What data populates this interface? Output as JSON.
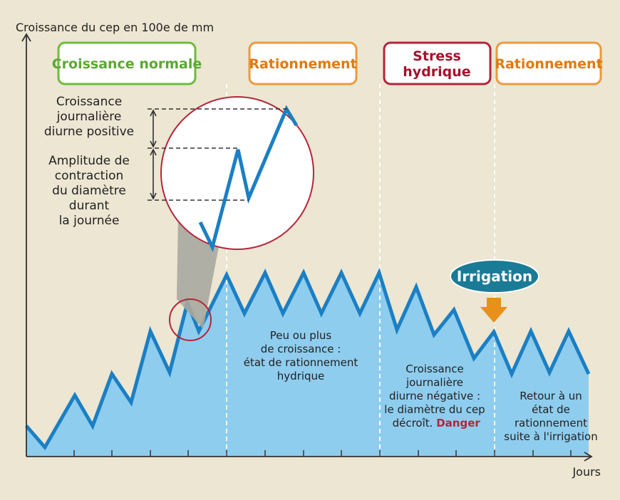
{
  "axes": {
    "y_label": "Croissance du cep en 100e de mm",
    "x_label": "Jours"
  },
  "phases": [
    {
      "label": "Croissance normale",
      "color": "#5aa832",
      "border": "#6bbd3b"
    },
    {
      "label": "Rationnement",
      "color": "#e07a10",
      "border": "#eb9a3e"
    },
    {
      "label_line1": "Stress",
      "label_line2": "hydrique",
      "color": "#a8102a",
      "border": "#b0263a"
    },
    {
      "label": "Rationnement",
      "color": "#e07a10",
      "border": "#eb9a3e"
    }
  ],
  "zoom": {
    "growth_label": [
      "Croissance",
      "journalière",
      "diurne positive"
    ],
    "contraction_label": [
      "Amplitude de",
      "contraction",
      "du diamètre",
      "durant",
      "la journée"
    ]
  },
  "annotations": {
    "plateau": [
      "Peu ou plus",
      "de croissance :",
      "état de rationnement",
      "hydrique"
    ],
    "stress": [
      "Croissance",
      "journalière",
      "diurne négative :",
      "le diamètre du cep",
      "décroît."
    ],
    "danger": "Danger",
    "irrigation": "Irrigation",
    "recovery": [
      "Retour à un",
      "état de",
      "rationnement",
      "suite à l'irrigation"
    ]
  },
  "colors": {
    "fill": "#8fcdee",
    "line": "#1b7fc4",
    "badge": "#1a7b96",
    "arrow": "#e8901a",
    "circle": "#b5263a",
    "danger": "#b5263a"
  }
}
